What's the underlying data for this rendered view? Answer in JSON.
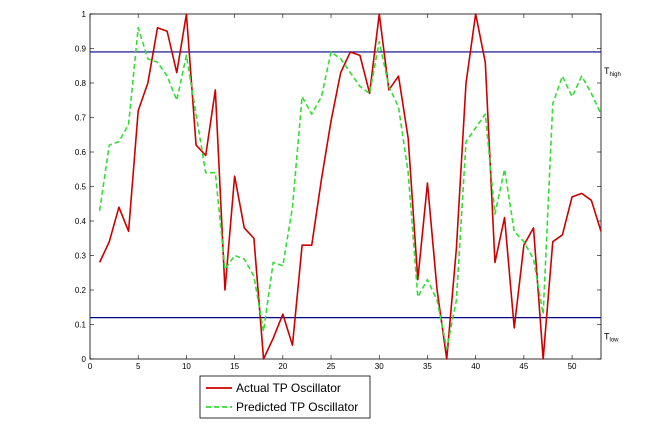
{
  "chart_data": {
    "type": "line",
    "title": "",
    "xlabel": "",
    "ylabel": "",
    "xlim": [
      0,
      53
    ],
    "ylim": [
      0,
      1
    ],
    "x_ticks": [
      "0",
      "5",
      "10",
      "15",
      "20",
      "25",
      "30",
      "35",
      "40",
      "45",
      "50"
    ],
    "y_ticks": [
      "0",
      "0.1",
      "0.2",
      "0.3",
      "0.4",
      "0.5",
      "0.6",
      "0.7",
      "0.8",
      "0.9",
      "1"
    ],
    "x": [
      1,
      2,
      3,
      4,
      5,
      6,
      7,
      8,
      9,
      10,
      11,
      12,
      13,
      14,
      15,
      16,
      17,
      18,
      19,
      20,
      21,
      22,
      23,
      24,
      25,
      26,
      27,
      28,
      29,
      30,
      31,
      32,
      33,
      34,
      35,
      36,
      37,
      38,
      39,
      40,
      41,
      42,
      43,
      44,
      45,
      46,
      47,
      48,
      49,
      50,
      51,
      52,
      53
    ],
    "series": [
      {
        "name": "Actual TP Oscillator",
        "color": "#cc0000",
        "style": "solid",
        "values": [
          0.28,
          0.34,
          0.44,
          0.37,
          0.72,
          0.8,
          0.96,
          0.95,
          0.83,
          1.0,
          0.62,
          0.59,
          0.78,
          0.2,
          0.53,
          0.38,
          0.35,
          0.0,
          0.06,
          0.13,
          0.04,
          0.33,
          0.33,
          0.52,
          0.69,
          0.83,
          0.89,
          0.88,
          0.77,
          1.0,
          0.78,
          0.82,
          0.64,
          0.23,
          0.51,
          0.2,
          0.0,
          0.32,
          0.8,
          1.0,
          0.86,
          0.28,
          0.41,
          0.09,
          0.33,
          0.38,
          0.0,
          0.34,
          0.36,
          0.47,
          0.48,
          0.46,
          0.37
        ]
      },
      {
        "name": "Predicted TP Oscillator",
        "color": "#33dd33",
        "style": "dashed",
        "values": [
          0.43,
          0.62,
          0.63,
          0.68,
          0.96,
          0.87,
          0.86,
          0.82,
          0.75,
          0.88,
          0.71,
          0.54,
          0.54,
          0.26,
          0.3,
          0.29,
          0.24,
          0.08,
          0.28,
          0.27,
          0.44,
          0.76,
          0.71,
          0.76,
          0.89,
          0.87,
          0.83,
          0.79,
          0.77,
          0.92,
          0.79,
          0.73,
          0.54,
          0.18,
          0.23,
          0.17,
          0.03,
          0.17,
          0.63,
          0.67,
          0.71,
          0.42,
          0.55,
          0.37,
          0.34,
          0.29,
          0.13,
          0.74,
          0.82,
          0.76,
          0.82,
          0.77,
          0.71
        ]
      }
    ],
    "reference_lines": [
      {
        "name": "T_high",
        "label_main": "T",
        "label_sub": "high",
        "value": 0.89,
        "color": "#00008b"
      },
      {
        "name": "T_low",
        "label_main": "T",
        "label_sub": "low",
        "value": 0.12,
        "color": "#00008b"
      }
    ],
    "legend_position": "bottom-left",
    "grid": false
  }
}
